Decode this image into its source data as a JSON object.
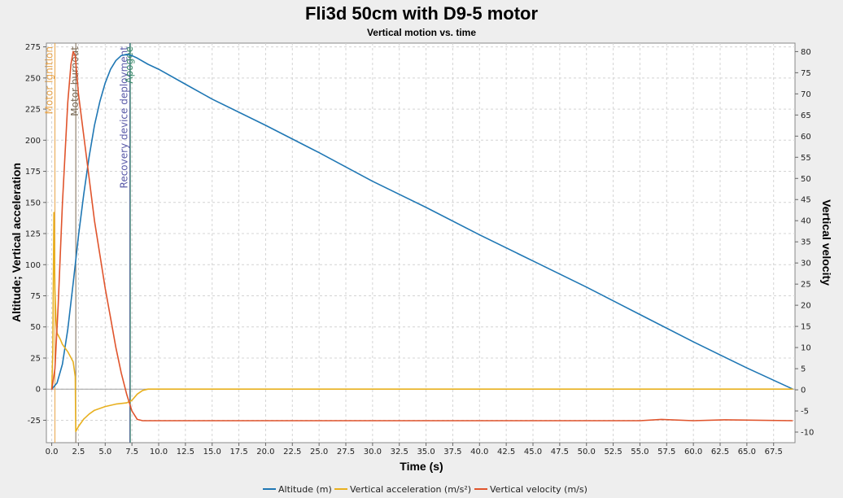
{
  "chart_data": {
    "type": "line",
    "title": "Fli3d 50cm with D9-5 motor",
    "subtitle": "Vertical motion vs. time",
    "xlabel": "Time (s)",
    "ylabel_left": "Altitude; Vertical acceleration",
    "ylabel_right": "Vertical velocity",
    "xlim": [
      -0.5,
      69.5
    ],
    "ylim_left": [
      -43,
      278
    ],
    "ylim_right": [
      -12.5,
      82
    ],
    "x_ticks": [
      "0.0",
      "2.5",
      "5.0",
      "7.5",
      "10.0",
      "12.5",
      "15.0",
      "17.5",
      "20.0",
      "22.5",
      "25.0",
      "27.5",
      "30.0",
      "32.5",
      "35.0",
      "37.5",
      "40.0",
      "42.5",
      "45.0",
      "47.5",
      "50.0",
      "52.5",
      "55.0",
      "57.5",
      "60.0",
      "62.5",
      "65.0",
      "67.5"
    ],
    "y_left_ticks": [
      "-25",
      "0",
      "25",
      "50",
      "75",
      "100",
      "125",
      "150",
      "175",
      "200",
      "225",
      "250",
      "275"
    ],
    "y_right_ticks": [
      "-10",
      "-5",
      "0",
      "5",
      "10",
      "15",
      "20",
      "25",
      "30",
      "35",
      "40",
      "45",
      "50",
      "55",
      "60",
      "65",
      "70",
      "75",
      "80"
    ],
    "grid": true,
    "legend_position": "bottom",
    "series": [
      {
        "name": "Altitude (m)",
        "axis": "left",
        "color": "#1f77b4",
        "x": [
          0,
          0.5,
          1.0,
          1.5,
          2.0,
          2.5,
          3.0,
          3.5,
          4.0,
          4.5,
          5.0,
          5.5,
          6.0,
          6.5,
          7.0,
          7.5,
          8.0,
          9.0,
          10.0,
          12.5,
          15.0,
          20.0,
          25.0,
          30.0,
          35.0,
          40.0,
          45.0,
          50.0,
          55.0,
          60.0,
          65.0,
          69.3
        ],
        "y": [
          0,
          5,
          20,
          48,
          85,
          123,
          157,
          187,
          212,
          231,
          246,
          257,
          264,
          268,
          269,
          268,
          266,
          261,
          257,
          245,
          233,
          212,
          190,
          167,
          146,
          124,
          103,
          82,
          60,
          38,
          17,
          0
        ]
      },
      {
        "name": "Vertical acceleration (m/s²)",
        "axis": "left",
        "color": "#e8b01f",
        "x": [
          0,
          0.1,
          0.2,
          0.3,
          0.4,
          0.5,
          0.8,
          1.0,
          1.5,
          2.0,
          2.2,
          2.25,
          2.5,
          3.0,
          3.5,
          4.0,
          5.0,
          6.0,
          7.0,
          7.5,
          8.0,
          8.5,
          9.0,
          20.0,
          40.0,
          60.0,
          69.3
        ],
        "y": [
          0,
          30,
          142,
          80,
          55,
          45,
          40,
          36,
          30,
          22,
          10,
          -34,
          -30,
          -24,
          -20,
          -17,
          -14,
          -12,
          -11,
          -9,
          -4,
          -1,
          0,
          0,
          0,
          0,
          0
        ]
      },
      {
        "name": "Vertical velocity (m/s)",
        "axis": "right",
        "color": "#e0542c",
        "x": [
          0,
          0.3,
          0.6,
          1.0,
          1.5,
          1.8,
          2.0,
          2.2,
          2.5,
          3.0,
          3.5,
          4.0,
          4.5,
          5.0,
          5.5,
          6.0,
          6.5,
          7.0,
          7.5,
          8.0,
          8.5,
          30.0,
          55.0,
          57.0,
          60.0,
          63.0,
          69.3
        ],
        "y": [
          0,
          5,
          20,
          44,
          68,
          77,
          80,
          79,
          70,
          60,
          50,
          40,
          32,
          24,
          17,
          10,
          4,
          -1,
          -5,
          -7,
          -7.3,
          -7.3,
          -7.3,
          -7.0,
          -7.3,
          -7.1,
          -7.3
        ]
      }
    ],
    "events": [
      {
        "label": "Motor ignition",
        "time": 0.3,
        "color": "#e8a44a"
      },
      {
        "label": "Motor burnout",
        "time": 2.25,
        "color": "#7a6a55"
      },
      {
        "label": "Recovery device deployment",
        "time": 7.3,
        "color": "#5a5aa8"
      },
      {
        "label": "Apogee",
        "time": 7.35,
        "color": "#3a8a6a"
      }
    ]
  }
}
